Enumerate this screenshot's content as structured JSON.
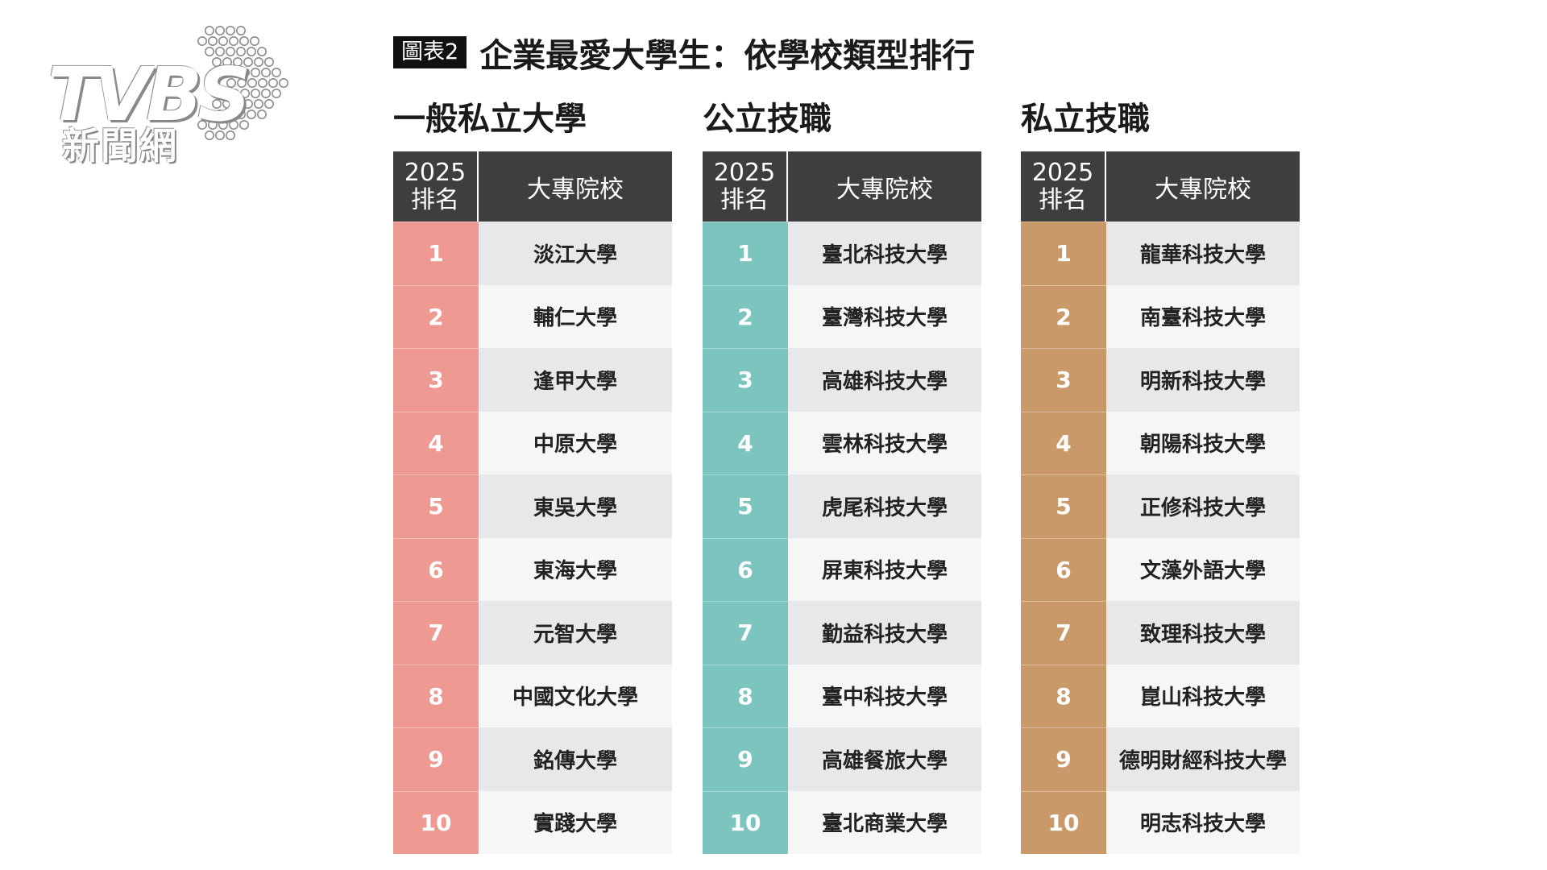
{
  "logo": {
    "name": "TVBS",
    "sub": "新聞網",
    "icon": "tvbs-logo-icon"
  },
  "headline": {
    "tag": "圖表2",
    "title": "企業最愛大學生：依學校類型排行"
  },
  "table_header": {
    "rank_year": "2025",
    "rank_label": "排名",
    "school_label": "大專院校"
  },
  "groups": [
    {
      "title": "一般私立大學",
      "color": "#ee9a93",
      "ranks": [
        "1",
        "2",
        "3",
        "4",
        "5",
        "6",
        "7",
        "8",
        "9",
        "10"
      ],
      "schools": [
        "淡江大學",
        "輔仁大學",
        "逢甲大學",
        "中原大學",
        "東吳大學",
        "東海大學",
        "元智大學",
        "中國文化大學",
        "銘傳大學",
        "實踐大學"
      ]
    },
    {
      "title": "公立技職",
      "color": "#7cc4be",
      "ranks": [
        "1",
        "2",
        "3",
        "4",
        "5",
        "6",
        "7",
        "8",
        "9",
        "10"
      ],
      "schools": [
        "臺北科技大學",
        "臺灣科技大學",
        "高雄科技大學",
        "雲林科技大學",
        "虎尾科技大學",
        "屏東科技大學",
        "勤益科技大學",
        "臺中科技大學",
        "高雄餐旅大學",
        "臺北商業大學"
      ]
    },
    {
      "title": "私立技職",
      "color": "#c9996a",
      "ranks": [
        "1",
        "2",
        "3",
        "4",
        "5",
        "6",
        "7",
        "8",
        "9",
        "10"
      ],
      "schools": [
        "龍華科技大學",
        "南臺科技大學",
        "明新科技大學",
        "朝陽科技大學",
        "正修科技大學",
        "文藻外語大學",
        "致理科技大學",
        "崑山科技大學",
        "德明財經科技大學",
        "明志科技大學"
      ]
    }
  ],
  "chart_data": {
    "type": "table",
    "title": "企業最愛大學生：依學校類型排行",
    "columns": [
      "2025排名",
      "大專院校"
    ],
    "tables": [
      {
        "name": "一般私立大學",
        "rows": [
          [
            1,
            "淡江大學"
          ],
          [
            2,
            "輔仁大學"
          ],
          [
            3,
            "逢甲大學"
          ],
          [
            4,
            "中原大學"
          ],
          [
            5,
            "東吳大學"
          ],
          [
            6,
            "東海大學"
          ],
          [
            7,
            "元智大學"
          ],
          [
            8,
            "中國文化大學"
          ],
          [
            9,
            "銘傳大學"
          ],
          [
            10,
            "實踐大學"
          ]
        ]
      },
      {
        "name": "公立技職",
        "rows": [
          [
            1,
            "臺北科技大學"
          ],
          [
            2,
            "臺灣科技大學"
          ],
          [
            3,
            "高雄科技大學"
          ],
          [
            4,
            "雲林科技大學"
          ],
          [
            5,
            "虎尾科技大學"
          ],
          [
            6,
            "屏東科技大學"
          ],
          [
            7,
            "勤益科技大學"
          ],
          [
            8,
            "臺中科技大學"
          ],
          [
            9,
            "高雄餐旅大學"
          ],
          [
            10,
            "臺北商業大學"
          ]
        ]
      },
      {
        "name": "私立技職",
        "rows": [
          [
            1,
            "龍華科技大學"
          ],
          [
            2,
            "南臺科技大學"
          ],
          [
            3,
            "明新科技大學"
          ],
          [
            4,
            "朝陽科技大學"
          ],
          [
            5,
            "正修科技大學"
          ],
          [
            6,
            "文藻外語大學"
          ],
          [
            7,
            "致理科技大學"
          ],
          [
            8,
            "崑山科技大學"
          ],
          [
            9,
            "德明財經科技大學"
          ],
          [
            10,
            "明志科技大學"
          ]
        ]
      }
    ]
  }
}
